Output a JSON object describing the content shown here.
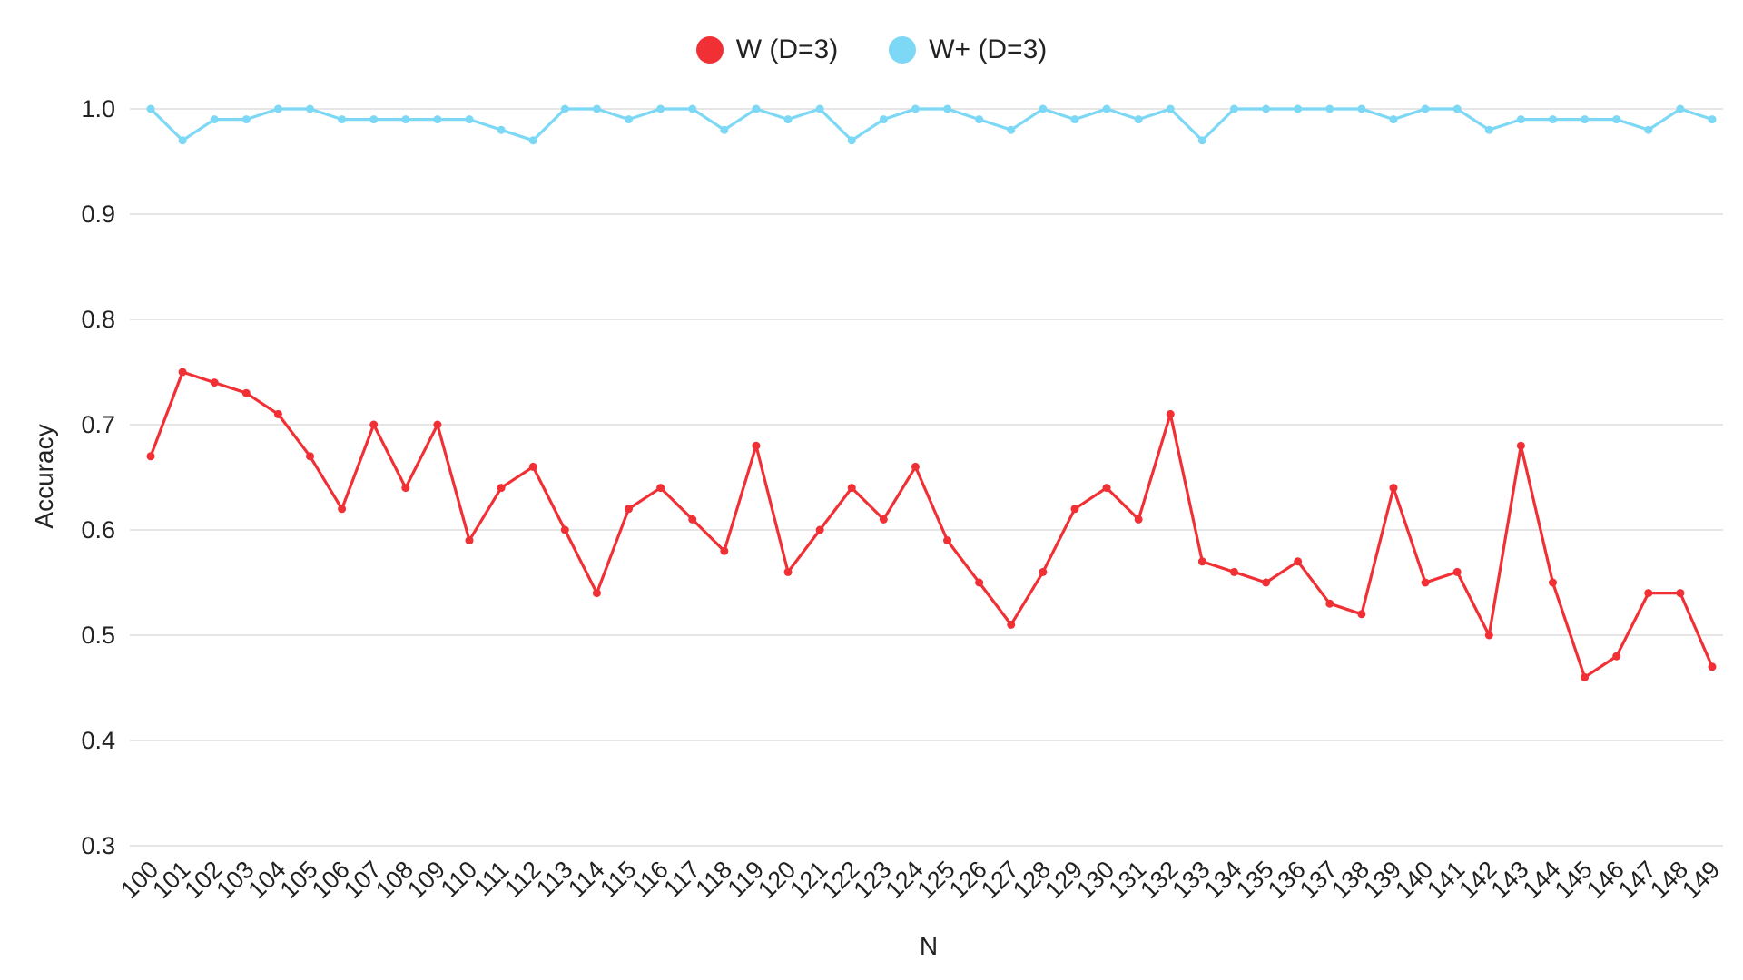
{
  "chart_data": {
    "type": "line",
    "title": "",
    "xlabel": "N",
    "ylabel": "Accuracy",
    "ylim": [
      0.3,
      1.0
    ],
    "yticks": [
      "0.3",
      "0.4",
      "0.5",
      "0.6",
      "0.7",
      "0.8",
      "0.9",
      "1.0"
    ],
    "grid": true,
    "legend_position": "top-center",
    "categories": [
      "100",
      "101",
      "102",
      "103",
      "104",
      "105",
      "106",
      "107",
      "108",
      "109",
      "110",
      "111",
      "112",
      "113",
      "114",
      "115",
      "116",
      "117",
      "118",
      "119",
      "120",
      "121",
      "122",
      "123",
      "124",
      "125",
      "126",
      "127",
      "128",
      "129",
      "130",
      "131",
      "132",
      "133",
      "134",
      "135",
      "136",
      "137",
      "138",
      "139",
      "140",
      "141",
      "142",
      "143",
      "144",
      "145",
      "146",
      "147",
      "148",
      "149"
    ],
    "series": [
      {
        "name": "W (D=3)",
        "color": "#f03035",
        "values": [
          0.67,
          0.75,
          0.74,
          0.73,
          0.71,
          0.67,
          0.62,
          0.7,
          0.64,
          0.7,
          0.59,
          0.64,
          0.66,
          0.6,
          0.54,
          0.62,
          0.64,
          0.61,
          0.58,
          0.68,
          0.56,
          0.6,
          0.64,
          0.61,
          0.66,
          0.59,
          0.55,
          0.51,
          0.56,
          0.62,
          0.64,
          0.61,
          0.71,
          0.57,
          0.56,
          0.55,
          0.57,
          0.53,
          0.52,
          0.64,
          0.55,
          0.56,
          0.5,
          0.68,
          0.55,
          0.46,
          0.48,
          0.54,
          0.54,
          0.47
        ]
      },
      {
        "name": "W+ (D=3)",
        "color": "#7dd8f5",
        "values": [
          1.0,
          0.97,
          0.99,
          0.99,
          1.0,
          1.0,
          0.99,
          0.99,
          0.99,
          0.99,
          0.99,
          0.98,
          0.97,
          1.0,
          1.0,
          0.99,
          1.0,
          1.0,
          0.98,
          1.0,
          0.99,
          1.0,
          0.97,
          0.99,
          1.0,
          1.0,
          0.99,
          0.98,
          1.0,
          0.99,
          1.0,
          0.99,
          1.0,
          0.97,
          1.0,
          1.0,
          1.0,
          1.0,
          1.0,
          0.99,
          1.0,
          1.0,
          0.98,
          0.99,
          0.99,
          0.99,
          0.99,
          0.98,
          1.0,
          0.99
        ]
      }
    ]
  }
}
